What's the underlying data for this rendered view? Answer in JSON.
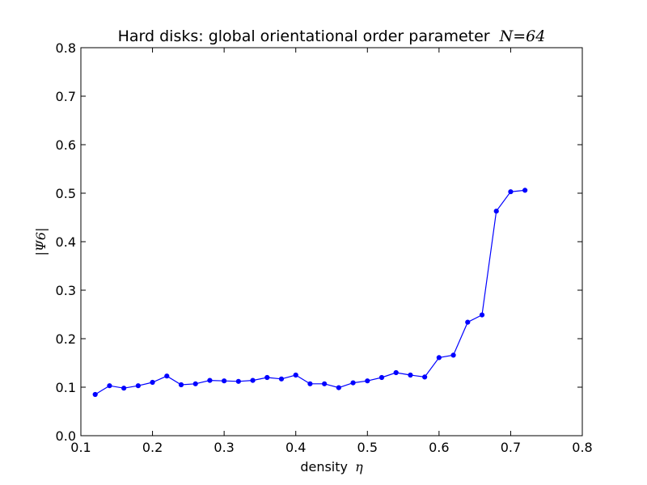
{
  "chart_data": {
    "type": "line",
    "title": "Hard disks: global orientational order parameter",
    "title_math": "N=64",
    "xlabel": "density",
    "xlabel_math": "η",
    "ylabel": "|Ψ6|",
    "xlim": [
      0.1,
      0.8
    ],
    "ylim": [
      0.0,
      0.8
    ],
    "x_ticks": [
      "0.1",
      "0.2",
      "0.3",
      "0.4",
      "0.5",
      "0.6",
      "0.7",
      "0.8"
    ],
    "y_ticks": [
      "0.0",
      "0.1",
      "0.2",
      "0.3",
      "0.4",
      "0.5",
      "0.6",
      "0.7",
      "0.8"
    ],
    "grid": false,
    "legend": "none",
    "series": [
      {
        "color": "#0000ff",
        "marker": "dot",
        "x": [
          0.12,
          0.14,
          0.16,
          0.18,
          0.2,
          0.22,
          0.24,
          0.26,
          0.28,
          0.3,
          0.32,
          0.34,
          0.36,
          0.38,
          0.4,
          0.42,
          0.44,
          0.46,
          0.48,
          0.5,
          0.52,
          0.54,
          0.56,
          0.58,
          0.6,
          0.62,
          0.64,
          0.66,
          0.68,
          0.7,
          0.72
        ],
        "y": [
          0.085,
          0.103,
          0.098,
          0.103,
          0.11,
          0.123,
          0.105,
          0.107,
          0.114,
          0.113,
          0.112,
          0.114,
          0.12,
          0.117,
          0.125,
          0.107,
          0.107,
          0.099,
          0.109,
          0.113,
          0.12,
          0.13,
          0.125,
          0.121,
          0.161,
          0.166,
          0.234,
          0.249,
          0.463,
          0.503,
          0.506
        ]
      }
    ]
  }
}
